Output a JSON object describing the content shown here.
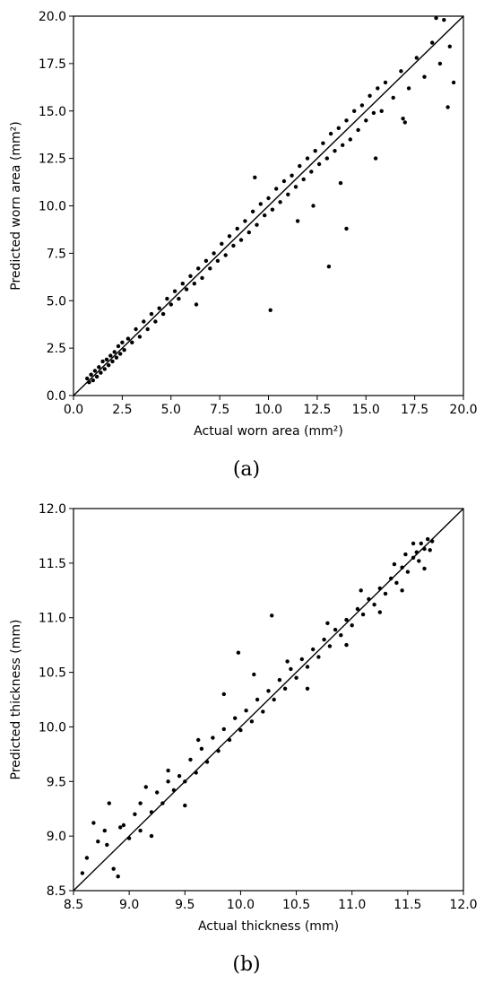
{
  "chart_data": [
    {
      "type": "scatter",
      "panel_label": "(a)",
      "xlabel": "Actual worn area (mm²)",
      "ylabel": "Predicted worn area (mm²)",
      "xlim": [
        0.0,
        20.0
      ],
      "ylim": [
        0.0,
        20.0
      ],
      "xticks": [
        "0.0",
        "2.5",
        "5.0",
        "7.5",
        "10.0",
        "12.5",
        "15.0",
        "17.5",
        "20.0"
      ],
      "yticks": [
        "0.0",
        "2.5",
        "5.0",
        "7.5",
        "10.0",
        "12.5",
        "15.0",
        "17.5",
        "20.0"
      ],
      "reference_line": "y = x",
      "marker_color": "#000000",
      "grid": false,
      "points": [
        [
          0.7,
          0.9
        ],
        [
          0.8,
          0.7
        ],
        [
          0.9,
          1.1
        ],
        [
          1.0,
          0.8
        ],
        [
          1.1,
          1.3
        ],
        [
          1.2,
          1.0
        ],
        [
          1.3,
          1.5
        ],
        [
          1.4,
          1.2
        ],
        [
          1.5,
          1.8
        ],
        [
          1.6,
          1.4
        ],
        [
          1.7,
          1.9
        ],
        [
          1.8,
          1.6
        ],
        [
          1.9,
          2.1
        ],
        [
          2.0,
          1.8
        ],
        [
          2.1,
          2.3
        ],
        [
          2.2,
          2.0
        ],
        [
          2.3,
          2.6
        ],
        [
          2.4,
          2.2
        ],
        [
          2.5,
          2.8
        ],
        [
          2.6,
          2.4
        ],
        [
          2.8,
          3.0
        ],
        [
          3.0,
          2.8
        ],
        [
          3.2,
          3.5
        ],
        [
          3.4,
          3.1
        ],
        [
          3.6,
          3.9
        ],
        [
          3.8,
          3.5
        ],
        [
          4.0,
          4.3
        ],
        [
          4.2,
          3.9
        ],
        [
          4.4,
          4.6
        ],
        [
          4.6,
          4.3
        ],
        [
          4.8,
          5.1
        ],
        [
          5.0,
          4.8
        ],
        [
          5.2,
          5.5
        ],
        [
          5.4,
          5.1
        ],
        [
          5.6,
          5.9
        ],
        [
          5.8,
          5.6
        ],
        [
          6.0,
          6.3
        ],
        [
          6.2,
          5.9
        ],
        [
          6.4,
          6.7
        ],
        [
          6.6,
          6.2
        ],
        [
          6.8,
          7.1
        ],
        [
          7.0,
          6.7
        ],
        [
          7.2,
          7.5
        ],
        [
          7.4,
          7.1
        ],
        [
          7.6,
          8.0
        ],
        [
          7.8,
          7.4
        ],
        [
          8.0,
          8.4
        ],
        [
          8.2,
          7.9
        ],
        [
          8.4,
          8.8
        ],
        [
          8.6,
          8.2
        ],
        [
          8.8,
          9.2
        ],
        [
          9.0,
          8.6
        ],
        [
          9.2,
          9.7
        ],
        [
          9.4,
          9.0
        ],
        [
          9.6,
          10.1
        ],
        [
          9.8,
          9.5
        ],
        [
          10.0,
          10.4
        ],
        [
          10.2,
          9.8
        ],
        [
          10.4,
          10.9
        ],
        [
          10.6,
          10.2
        ],
        [
          10.8,
          11.3
        ],
        [
          11.0,
          10.6
        ],
        [
          11.2,
          11.6
        ],
        [
          11.4,
          11.0
        ],
        [
          11.6,
          12.1
        ],
        [
          11.8,
          11.4
        ],
        [
          12.0,
          12.5
        ],
        [
          12.2,
          11.8
        ],
        [
          12.4,
          12.9
        ],
        [
          12.6,
          12.2
        ],
        [
          12.8,
          13.3
        ],
        [
          13.0,
          12.5
        ],
        [
          13.2,
          13.8
        ],
        [
          13.4,
          12.9
        ],
        [
          13.6,
          14.1
        ],
        [
          13.8,
          13.2
        ],
        [
          14.0,
          14.5
        ],
        [
          14.2,
          13.5
        ],
        [
          14.4,
          15.0
        ],
        [
          14.6,
          14.0
        ],
        [
          14.8,
          15.3
        ],
        [
          15.0,
          14.5
        ],
        [
          15.2,
          15.8
        ],
        [
          15.4,
          14.9
        ],
        [
          15.6,
          16.2
        ],
        [
          15.8,
          15.0
        ],
        [
          16.0,
          16.5
        ],
        [
          16.4,
          15.7
        ],
        [
          16.8,
          17.1
        ],
        [
          17.2,
          16.2
        ],
        [
          17.6,
          17.8
        ],
        [
          18.0,
          16.8
        ],
        [
          18.4,
          18.6
        ],
        [
          18.8,
          17.5
        ],
        [
          19.0,
          19.8
        ],
        [
          19.3,
          18.4
        ],
        [
          19.5,
          16.5
        ],
        [
          18.6,
          19.9
        ],
        [
          19.2,
          15.2
        ],
        [
          17.0,
          14.4
        ],
        [
          10.1,
          4.5
        ],
        [
          13.1,
          6.8
        ],
        [
          14.0,
          8.8
        ],
        [
          12.3,
          10.0
        ],
        [
          15.5,
          12.5
        ],
        [
          16.9,
          14.6
        ],
        [
          11.5,
          9.2
        ],
        [
          13.7,
          11.2
        ],
        [
          9.3,
          11.5
        ],
        [
          6.3,
          4.8
        ]
      ]
    },
    {
      "type": "scatter",
      "panel_label": "(b)",
      "xlabel": "Actual thickness (mm)",
      "ylabel": "Predicted thickness (mm)",
      "xlim": [
        8.5,
        12.0
      ],
      "ylim": [
        8.5,
        12.0
      ],
      "xticks": [
        "8.5",
        "9.0",
        "9.5",
        "10.0",
        "10.5",
        "11.0",
        "11.5",
        "12.0"
      ],
      "yticks": [
        "8.5",
        "9.0",
        "9.5",
        "10.0",
        "10.5",
        "11.0",
        "11.5",
        "12.0"
      ],
      "reference_line": "y = x",
      "marker_color": "#000000",
      "grid": false,
      "points": [
        [
          8.58,
          8.66
        ],
        [
          8.62,
          8.8
        ],
        [
          8.68,
          9.12
        ],
        [
          8.72,
          8.95
        ],
        [
          8.78,
          9.05
        ],
        [
          8.82,
          9.3
        ],
        [
          8.86,
          8.7
        ],
        [
          8.9,
          8.63
        ],
        [
          8.95,
          9.1
        ],
        [
          9.0,
          8.98
        ],
        [
          9.05,
          9.2
        ],
        [
          9.1,
          9.05
        ],
        [
          9.15,
          9.45
        ],
        [
          9.2,
          9.22
        ],
        [
          9.25,
          9.4
        ],
        [
          9.3,
          9.3
        ],
        [
          9.35,
          9.6
        ],
        [
          9.4,
          9.42
        ],
        [
          9.45,
          9.55
        ],
        [
          9.5,
          9.5
        ],
        [
          9.55,
          9.7
        ],
        [
          9.6,
          9.58
        ],
        [
          9.65,
          9.8
        ],
        [
          9.7,
          9.68
        ],
        [
          9.75,
          9.9
        ],
        [
          9.8,
          9.78
        ],
        [
          9.85,
          9.98
        ],
        [
          9.9,
          9.88
        ],
        [
          9.95,
          10.08
        ],
        [
          10.0,
          9.97
        ],
        [
          10.05,
          10.15
        ],
        [
          10.1,
          10.05
        ],
        [
          10.15,
          10.25
        ],
        [
          10.2,
          10.14
        ],
        [
          10.25,
          10.33
        ],
        [
          10.3,
          10.25
        ],
        [
          10.35,
          10.43
        ],
        [
          10.4,
          10.35
        ],
        [
          10.45,
          10.53
        ],
        [
          10.5,
          10.45
        ],
        [
          10.55,
          10.62
        ],
        [
          10.6,
          10.55
        ],
        [
          10.65,
          10.71
        ],
        [
          10.7,
          10.64
        ],
        [
          10.75,
          10.8
        ],
        [
          10.8,
          10.74
        ],
        [
          10.85,
          10.89
        ],
        [
          10.9,
          10.84
        ],
        [
          10.95,
          10.98
        ],
        [
          11.0,
          10.93
        ],
        [
          11.05,
          11.08
        ],
        [
          11.1,
          11.03
        ],
        [
          11.15,
          11.17
        ],
        [
          11.2,
          11.12
        ],
        [
          11.25,
          11.27
        ],
        [
          11.3,
          11.22
        ],
        [
          11.35,
          11.36
        ],
        [
          11.4,
          11.32
        ],
        [
          11.45,
          11.46
        ],
        [
          11.5,
          11.42
        ],
        [
          11.55,
          11.55
        ],
        [
          11.6,
          11.52
        ],
        [
          11.65,
          11.63
        ],
        [
          11.7,
          11.62
        ],
        [
          11.72,
          11.7
        ],
        [
          11.68,
          11.72
        ],
        [
          11.62,
          11.68
        ],
        [
          11.58,
          11.6
        ],
        [
          11.48,
          11.58
        ],
        [
          11.38,
          11.49
        ],
        [
          10.28,
          11.02
        ],
        [
          9.98,
          10.68
        ],
        [
          10.42,
          10.6
        ],
        [
          9.62,
          9.88
        ],
        [
          9.35,
          9.5
        ],
        [
          9.1,
          9.3
        ],
        [
          11.08,
          11.25
        ],
        [
          10.78,
          10.95
        ],
        [
          9.85,
          10.3
        ],
        [
          10.12,
          10.48
        ],
        [
          8.92,
          9.08
        ],
        [
          8.8,
          8.92
        ],
        [
          9.2,
          9.0
        ],
        [
          9.5,
          9.28
        ],
        [
          10.6,
          10.35
        ],
        [
          10.95,
          10.75
        ],
        [
          11.25,
          11.05
        ],
        [
          11.45,
          11.25
        ],
        [
          11.55,
          11.68
        ],
        [
          11.65,
          11.45
        ]
      ]
    }
  ]
}
